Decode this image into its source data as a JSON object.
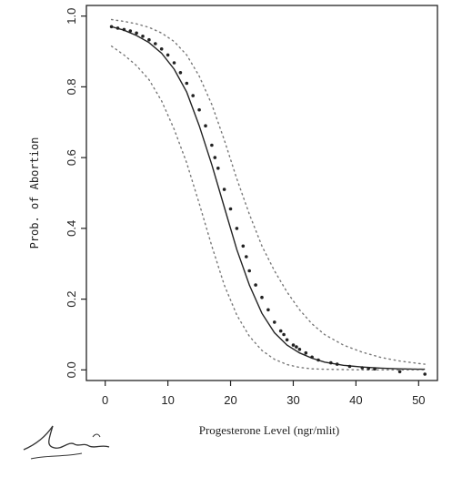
{
  "chart_data": {
    "type": "line",
    "xlabel": "Progesterone Level (ngr/mlit)",
    "ylabel": "Prob. of Abortion",
    "xlim": [
      -3,
      53
    ],
    "ylim": [
      -0.03,
      1.03
    ],
    "xticks": [
      "0",
      "10",
      "20",
      "30",
      "40",
      "50"
    ],
    "yticks": [
      "0.0",
      "0.2",
      "0.4",
      "0.6",
      "0.8",
      "1.0"
    ],
    "series": [
      {
        "style": "solid",
        "x": [
          1,
          3,
          5,
          7,
          9,
          11,
          13,
          15,
          17,
          19,
          21,
          23,
          25,
          27,
          29,
          31,
          33,
          35,
          38,
          41,
          44,
          47,
          50,
          51
        ],
        "y": [
          0.97,
          0.96,
          0.945,
          0.925,
          0.895,
          0.85,
          0.785,
          0.69,
          0.58,
          0.46,
          0.34,
          0.24,
          0.16,
          0.105,
          0.07,
          0.048,
          0.033,
          0.022,
          0.013,
          0.008,
          0.005,
          0.003,
          0.002,
          0.002
        ]
      },
      {
        "style": "dotted",
        "x": [
          1,
          3,
          5,
          7,
          9,
          11,
          13,
          15,
          17,
          19,
          21,
          23,
          25,
          27,
          29,
          31,
          33,
          35,
          38,
          41,
          44,
          47,
          50,
          51
        ],
        "y": [
          0.99,
          0.985,
          0.978,
          0.968,
          0.952,
          0.928,
          0.89,
          0.83,
          0.75,
          0.65,
          0.54,
          0.44,
          0.35,
          0.28,
          0.22,
          0.17,
          0.13,
          0.1,
          0.07,
          0.05,
          0.035,
          0.025,
          0.018,
          0.016
        ]
      },
      {
        "style": "dotted",
        "x": [
          1,
          3,
          5,
          7,
          9,
          11,
          13,
          15,
          17,
          19,
          21,
          23,
          25,
          27,
          29,
          31,
          33,
          35,
          38,
          41,
          44,
          47,
          50,
          51
        ],
        "y": [
          0.915,
          0.89,
          0.86,
          0.82,
          0.76,
          0.68,
          0.585,
          0.47,
          0.35,
          0.24,
          0.155,
          0.095,
          0.055,
          0.03,
          0.015,
          0.007,
          0.003,
          0.002,
          0.001,
          0.0,
          0.0,
          0.0,
          0.0,
          0.0
        ]
      }
    ],
    "points": [
      [
        1,
        0.97
      ],
      [
        2,
        0.966
      ],
      [
        3,
        0.962
      ],
      [
        4,
        0.958
      ],
      [
        5,
        0.952
      ],
      [
        6,
        0.943
      ],
      [
        7,
        0.933
      ],
      [
        8,
        0.922
      ],
      [
        9,
        0.907
      ],
      [
        10,
        0.89
      ],
      [
        11,
        0.868
      ],
      [
        12,
        0.84
      ],
      [
        13,
        0.81
      ],
      [
        14,
        0.775
      ],
      [
        15,
        0.735
      ],
      [
        16,
        0.69
      ],
      [
        17,
        0.635
      ],
      [
        17.5,
        0.6
      ],
      [
        18,
        0.57
      ],
      [
        19,
        0.51
      ],
      [
        20,
        0.455
      ],
      [
        21,
        0.4
      ],
      [
        22,
        0.35
      ],
      [
        22.5,
        0.32
      ],
      [
        23,
        0.28
      ],
      [
        24,
        0.24
      ],
      [
        25,
        0.205
      ],
      [
        26,
        0.17
      ],
      [
        27,
        0.135
      ],
      [
        28,
        0.11
      ],
      [
        28.5,
        0.1
      ],
      [
        29,
        0.085
      ],
      [
        30,
        0.07
      ],
      [
        30.5,
        0.065
      ],
      [
        31,
        0.058
      ],
      [
        32,
        0.048
      ],
      [
        33,
        0.036
      ],
      [
        34,
        0.028
      ],
      [
        36,
        0.02
      ],
      [
        37,
        0.016
      ],
      [
        39,
        0.01
      ],
      [
        41,
        0.006
      ],
      [
        42,
        0.004
      ],
      [
        43,
        0.003
      ],
      [
        47,
        -0.005
      ],
      [
        51,
        -0.012
      ]
    ]
  },
  "signature_text": "روشن لحستیک"
}
